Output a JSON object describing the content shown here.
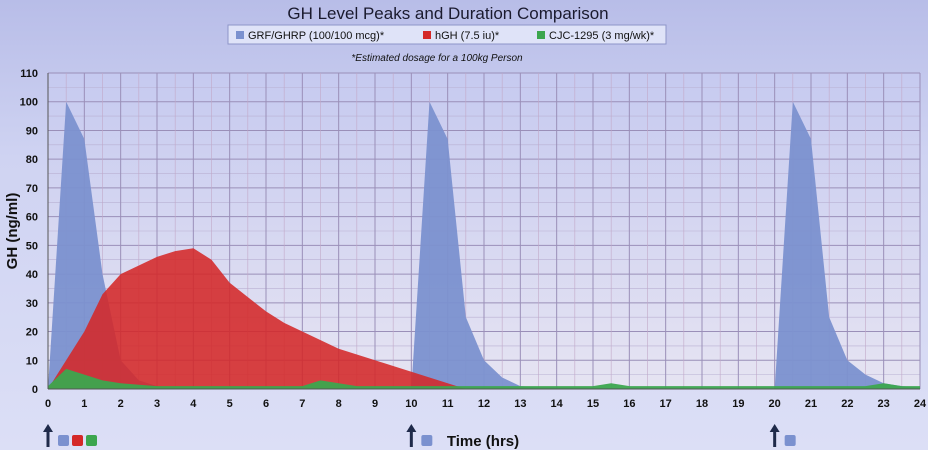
{
  "chart_data": {
    "type": "area",
    "title": "GH Level Peaks and Duration Comparison",
    "note": "*Estimated dosage for a 100kg Person",
    "xlabel": "Time (hrs)",
    "ylabel": "GH (ng/ml)",
    "xlim": [
      0,
      24
    ],
    "ylim": [
      0,
      110
    ],
    "x_ticks": [
      0,
      1,
      2,
      3,
      4,
      5,
      6,
      7,
      8,
      9,
      10,
      11,
      12,
      13,
      14,
      15,
      16,
      17,
      18,
      19,
      20,
      21,
      22,
      23,
      24
    ],
    "y_ticks": [
      0,
      10,
      20,
      30,
      40,
      50,
      60,
      70,
      80,
      90,
      100,
      110
    ],
    "grid": true,
    "legend_position": "top",
    "series": [
      {
        "name": "GRF/GHRP (100/100 mcg)*",
        "color": "#7b91cf",
        "x": [
          0,
          0.5,
          1,
          1.5,
          2,
          2.5,
          3,
          3.5,
          10,
          10.5,
          11,
          11.5,
          12,
          12.5,
          13,
          13.5,
          20,
          20.5,
          21,
          21.5,
          22,
          22.5,
          23,
          23.5,
          24
        ],
        "y": [
          0,
          100,
          87,
          40,
          10,
          3,
          1,
          0.5,
          0,
          100,
          87,
          25,
          10,
          4,
          1,
          0.5,
          0,
          100,
          87,
          25,
          10,
          5,
          2,
          1,
          0.5
        ]
      },
      {
        "name": "hGH (7.5 iu)*",
        "color": "#d42828",
        "x": [
          0,
          0.5,
          1,
          1.5,
          2,
          2.5,
          3,
          3.5,
          4,
          4.5,
          5,
          5.5,
          6,
          6.5,
          7,
          7.5,
          8,
          8.5,
          9,
          9.5,
          10,
          10.5,
          11,
          11.5
        ],
        "y": [
          0,
          10,
          20,
          33,
          40,
          43,
          46,
          48,
          49,
          45,
          37,
          32,
          27,
          23,
          20,
          17,
          14,
          12,
          10,
          8,
          6,
          4,
          2,
          0
        ]
      },
      {
        "name": "CJC-1295 (3 mg/wk)*",
        "color": "#3ca64e",
        "x": [
          0,
          0.5,
          1,
          1.5,
          2,
          2.5,
          3,
          7,
          7.5,
          8,
          8.5,
          15,
          15.5,
          16,
          22.5,
          23,
          23.5,
          24
        ],
        "y": [
          1,
          7,
          5,
          3,
          2,
          1.5,
          1,
          1,
          3,
          2,
          1,
          1,
          2,
          1,
          1,
          2,
          1,
          1
        ]
      }
    ],
    "dose_markers": [
      {
        "x": 0,
        "colors": [
          "#7b91cf",
          "#d42828",
          "#3ca64e"
        ]
      },
      {
        "x": 10,
        "colors": [
          "#7b91cf"
        ]
      },
      {
        "x": 20,
        "colors": [
          "#7b91cf"
        ]
      }
    ]
  }
}
